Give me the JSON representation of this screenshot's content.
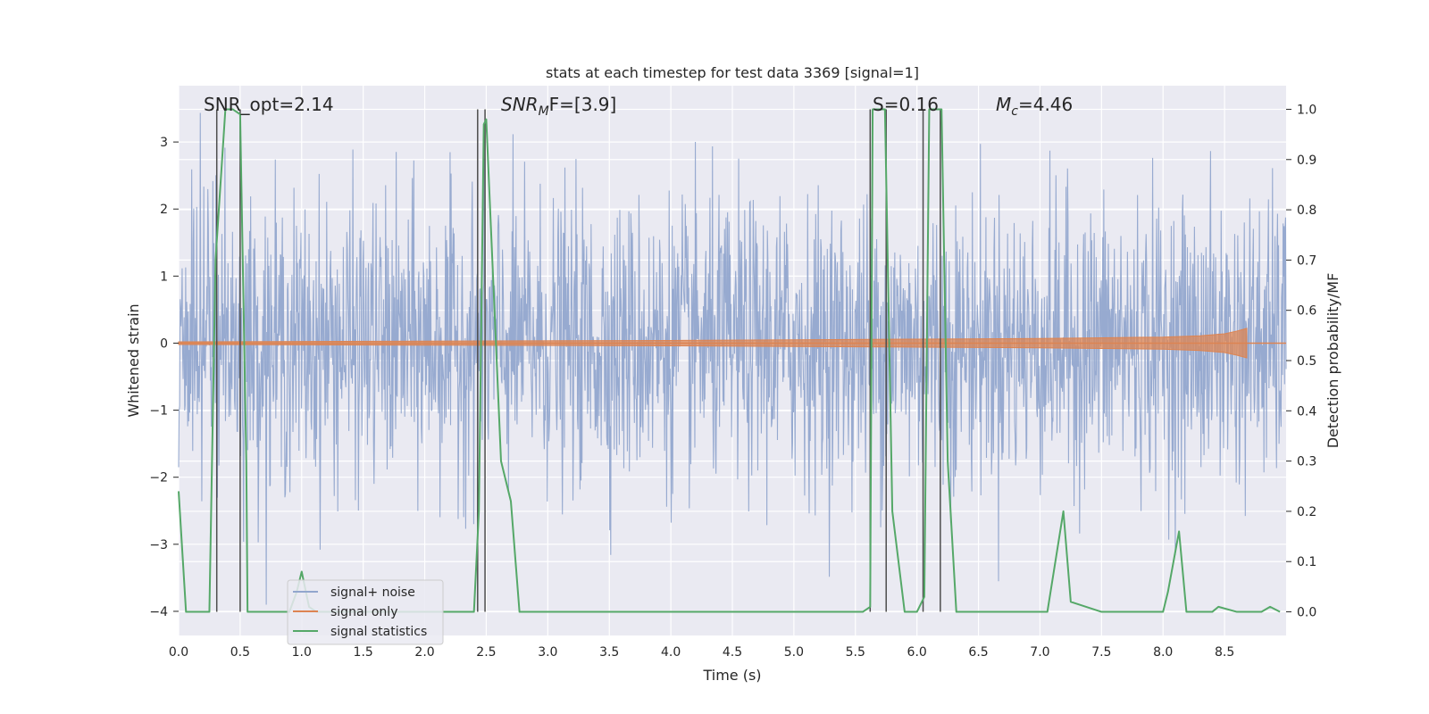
{
  "chart_data": {
    "type": "line",
    "title": "stats at each timestep for test data 3369 [signal=1]",
    "xlabel": "Time (s)",
    "ylabel_left": "Whitened strain",
    "ylabel_right": "Detection probability/MF",
    "xlim": [
      0.0,
      9.0
    ],
    "ylim_left": [
      -4.36,
      3.84
    ],
    "ylim_right": [
      -0.047,
      1.047
    ],
    "x_ticks": [
      "0.0",
      "0.5",
      "1.0",
      "1.5",
      "2.0",
      "2.5",
      "3.0",
      "3.5",
      "4.0",
      "4.5",
      "5.0",
      "5.5",
      "6.0",
      "6.5",
      "7.0",
      "7.5",
      "8.0",
      "8.5"
    ],
    "y_ticks_left": [
      "−4",
      "−3",
      "−2",
      "−1",
      "0",
      "1",
      "2",
      "3"
    ],
    "y_ticks_right": [
      "0.0",
      "0.1",
      "0.2",
      "0.3",
      "0.4",
      "0.5",
      "0.6",
      "0.7",
      "0.8",
      "0.9",
      "1.0"
    ],
    "grid": true,
    "legend_position": "lower-left",
    "annotations": {
      "snr_opt": "SNR_opt=2.14",
      "snr_mf_base": "SNR",
      "snr_mf_sub": "M",
      "snr_mf_rest": "F=[3.9]",
      "s": "S=0.16",
      "mc_base": "M",
      "mc_sub": "c",
      "mc_rest": "=4.46"
    },
    "series": [
      {
        "name": "signal+ noise",
        "color": "#92a6cd",
        "axis": "left",
        "description_values": "whitened noise, mostly within ±2 with spikes to ±3.5"
      },
      {
        "name": "signal only",
        "color": "#dd8452",
        "axis": "left",
        "envelope_x": [
          0.0,
          2.0,
          4.0,
          5.0,
          6.0,
          7.0,
          7.5,
          8.0,
          8.3,
          8.5,
          8.6,
          8.68
        ],
        "envelope_amp": [
          0.02,
          0.03,
          0.04,
          0.05,
          0.06,
          0.07,
          0.08,
          0.09,
          0.11,
          0.14,
          0.18,
          0.22
        ]
      },
      {
        "name": "signal statistics",
        "color": "#55a868",
        "axis": "right",
        "x": [
          0.0,
          0.06,
          0.1,
          0.25,
          0.3,
          0.38,
          0.44,
          0.5,
          0.55,
          0.56,
          0.6,
          0.9,
          0.96,
          1.0,
          1.06,
          1.12,
          1.2,
          1.5,
          2.0,
          2.4,
          2.44,
          2.48,
          2.5,
          2.62,
          2.7,
          2.77,
          2.82,
          3.0,
          4.0,
          5.0,
          5.56,
          5.62,
          5.64,
          5.7,
          5.74,
          5.8,
          5.9,
          6.0,
          6.06,
          6.1,
          6.2,
          6.25,
          6.32,
          6.5,
          7.0,
          7.06,
          7.19,
          7.25,
          7.5,
          8.0,
          8.04,
          8.13,
          8.19,
          8.3,
          8.4,
          8.45,
          8.6,
          8.8,
          8.87,
          8.95
        ],
        "y": [
          0.24,
          0.0,
          0.0,
          0.0,
          0.7,
          1.0,
          1.0,
          0.99,
          0.3,
          0.0,
          0.0,
          0.0,
          0.04,
          0.08,
          0.01,
          0.0,
          0.0,
          0.0,
          0.0,
          0.0,
          0.2,
          0.97,
          0.98,
          0.3,
          0.22,
          0.0,
          0.0,
          0.0,
          0.0,
          0.0,
          0.0,
          0.01,
          1.0,
          1.0,
          1.0,
          0.2,
          0.0,
          0.0,
          0.03,
          1.0,
          1.0,
          0.3,
          0.0,
          0.0,
          0.0,
          0.0,
          0.2,
          0.02,
          0.0,
          0.0,
          0.04,
          0.16,
          0.0,
          0.0,
          0.0,
          0.01,
          0.0,
          0.0,
          0.01,
          0.0
        ]
      }
    ],
    "vertical_lines_x": [
      0.31,
      0.5,
      2.43,
      2.49,
      5.62,
      5.75,
      6.05,
      6.19
    ]
  }
}
